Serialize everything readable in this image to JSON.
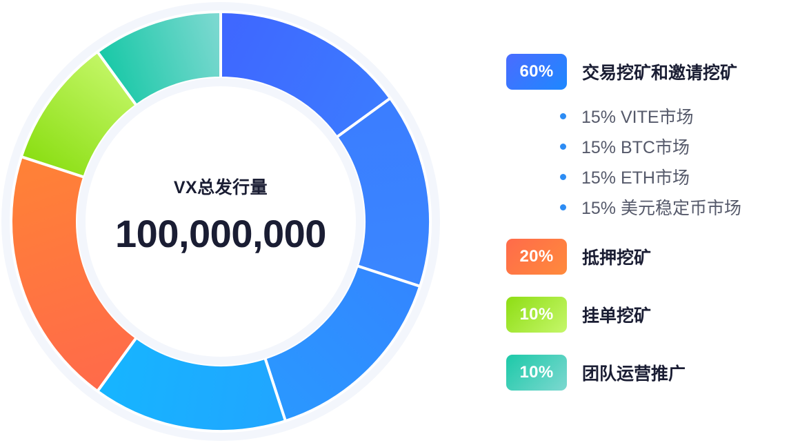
{
  "center": {
    "title": "VX总发行量",
    "total": "100,000,000"
  },
  "legend": [
    {
      "percent": "60%",
      "label": "交易挖矿和邀请挖矿",
      "color": "#2f7bff",
      "sub_items": [
        "15% VITE市场",
        "15% BTC市场",
        "15% ETH市场",
        "15% 美元稳定币市场"
      ]
    },
    {
      "percent": "20%",
      "label": "抵押挖矿",
      "color": "#ff7445"
    },
    {
      "percent": "10%",
      "label": "挂单挖矿",
      "color": "#a6ea2e"
    },
    {
      "percent": "10%",
      "label": "团队运营推广",
      "color": "#3cd1b8"
    }
  ],
  "chart_data": {
    "type": "pie",
    "title": "VX总发行量",
    "total": 100000000,
    "slices": [
      {
        "label": "15% VITE市场",
        "value": 15,
        "colors": [
          "#3f66ff",
          "#3c7bff"
        ]
      },
      {
        "label": "15% BTC市场",
        "value": 15,
        "colors": [
          "#3b7dff",
          "#3a87ff"
        ]
      },
      {
        "label": "15% ETH市场",
        "value": 15,
        "colors": [
          "#3386ff",
          "#2a98ff"
        ]
      },
      {
        "label": "15% 美元稳定币市场",
        "value": 15,
        "colors": [
          "#21a5ff",
          "#16b5ff"
        ]
      },
      {
        "label": "抵押挖矿",
        "value": 20,
        "colors": [
          "#ff6a4a",
          "#ff8236"
        ]
      },
      {
        "label": "挂单挖矿",
        "value": 10,
        "colors": [
          "#8ade12",
          "#c3f666"
        ]
      },
      {
        "label": "团队运营推广",
        "value": 10,
        "colors": [
          "#17c8a6",
          "#80d9d2"
        ]
      }
    ]
  }
}
